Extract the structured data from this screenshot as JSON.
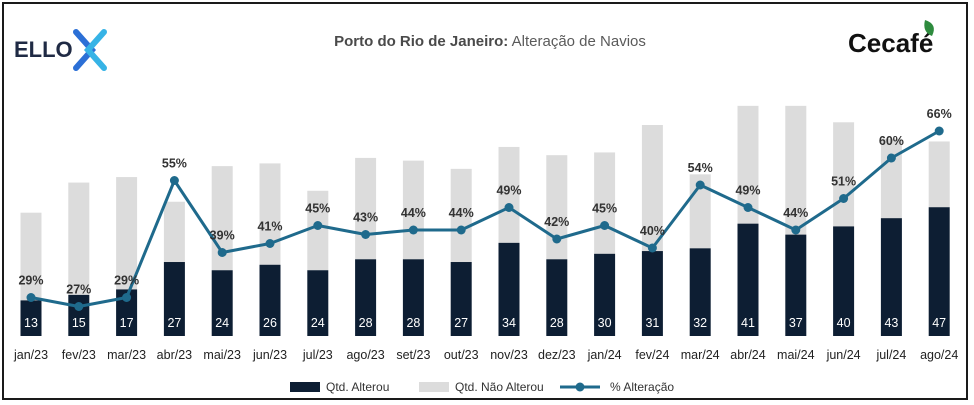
{
  "header": {
    "title_bold": "Porto do Rio de Janeiro:",
    "title_rest": " Alteração de Navios",
    "logo_left": "ELLO",
    "logo_right": "Cecafé"
  },
  "chart_data": {
    "type": "bar",
    "stacked": true,
    "categories": [
      "jan/23",
      "fev/23",
      "mar/23",
      "abr/23",
      "mai/23",
      "jun/23",
      "jul/23",
      "ago/23",
      "set/23",
      "out/23",
      "nov/23",
      "dez/23",
      "jan/24",
      "fev/24",
      "mar/24",
      "abr/24",
      "mai/24",
      "jun/24",
      "jul/24",
      "ago/24"
    ],
    "series": [
      {
        "name": "Qtd. Alterou",
        "type": "bar",
        "color": "#0d1e33",
        "values": [
          13,
          15,
          17,
          27,
          24,
          26,
          24,
          28,
          28,
          27,
          34,
          28,
          30,
          31,
          32,
          41,
          37,
          40,
          43,
          47
        ]
      },
      {
        "name": "Qtd. Não Alterou",
        "type": "bar",
        "color": "#dcdcdc",
        "values": [
          32,
          41,
          41,
          22,
          38,
          37,
          29,
          37,
          36,
          34,
          35,
          38,
          37,
          46,
          27,
          43,
          47,
          38,
          29,
          24
        ]
      },
      {
        "name": "% Alteração",
        "type": "line",
        "color": "#1f6a8c",
        "values": [
          29,
          27,
          29,
          55,
          39,
          41,
          45,
          43,
          44,
          44,
          49,
          42,
          45,
          40,
          54,
          49,
          44,
          51,
          60,
          66
        ],
        "labels": [
          "29%",
          "27%",
          "29%",
          "55%",
          "39%",
          "41%",
          "45%",
          "43%",
          "44%",
          "44%",
          "49%",
          "42%",
          "45%",
          "40%",
          "54%",
          "49%",
          "44%",
          "51%",
          "60%",
          "66%"
        ]
      }
    ],
    "legend": {
      "position": "bottom"
    },
    "grid": false
  }
}
